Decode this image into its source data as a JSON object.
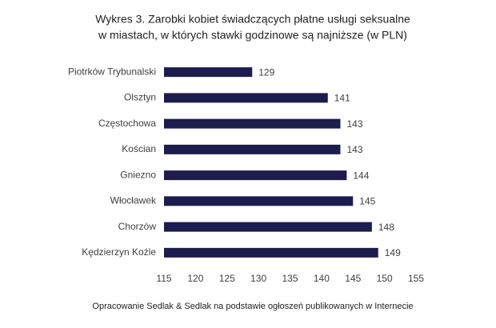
{
  "chart_data": {
    "type": "hbar",
    "title": [
      "Wykres 3. Zarobki kobiet świadczących płatne usługi seksualne",
      "w miastach, w których stawki godzinowe są najniższe (w PLN)"
    ],
    "categories": [
      "Piotrków Trybunalski",
      "Olsztyn",
      "Częstochowa",
      "Kościan",
      "Gniezno",
      "Włocławek",
      "Chorzów",
      "Kędzierzyn Koźle"
    ],
    "values": [
      129,
      141,
      143,
      143,
      144,
      145,
      148,
      149
    ],
    "color": "#1c1c4e",
    "xlim": [
      115,
      155
    ],
    "xticks": [
      115,
      120,
      125,
      130,
      135,
      140,
      145,
      150,
      155
    ],
    "source": "Opracowanie Sedlak & Sedlak na podstawie ogłoszeń publikowanych w Internecie"
  }
}
